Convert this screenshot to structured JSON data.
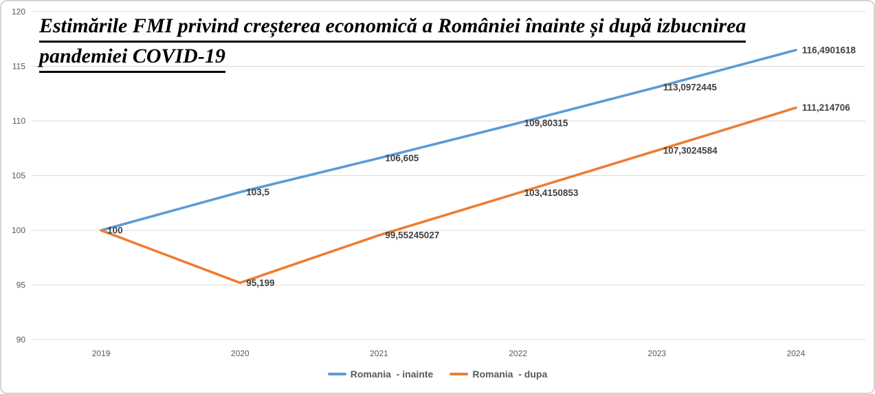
{
  "title": {
    "line1": "Estimările FMI privind creșterea economică a României înainte și după izbucnirea",
    "line2": "pandemiei COVID-19"
  },
  "chart_data": {
    "type": "line",
    "title": "Estimările FMI privind creșterea economică a României înainte și după izbucnirea pandemiei COVID-19",
    "categories": [
      "2019",
      "2020",
      "2021",
      "2022",
      "2023",
      "2024"
    ],
    "series": [
      {
        "name": "Romania  - inainte",
        "color": "#5B9BD5",
        "values": [
          100,
          103.5,
          106.605,
          109.80315,
          113.0972445,
          116.4901618
        ],
        "labels": [
          "100",
          "103,5",
          "106,605",
          "109,80315",
          "113,0972445",
          "116,4901618"
        ]
      },
      {
        "name": "Romania  - dupa",
        "color": "#ED7D31",
        "values": [
          100,
          95.199,
          99.55245027,
          103.4150853,
          107.3024584,
          111.214706
        ],
        "labels": [
          null,
          "95,199",
          "99,55245027",
          "103,4150853",
          "107,3024584",
          "111,214706"
        ]
      }
    ],
    "y_axis": {
      "min": 90,
      "max": 120,
      "step": 5,
      "ticks": [
        120,
        115,
        110,
        105,
        100,
        95,
        90
      ]
    },
    "x_axis": {
      "labels": [
        "2019",
        "2020",
        "2021",
        "2022",
        "2023",
        "2024"
      ]
    },
    "grid": true,
    "legend_position": "bottom",
    "styles": {
      "background": "#FFFFFF",
      "frame_border_color": "#D4D4D4",
      "grid_color": "#D9D9D9",
      "axis_label_color": "#595959",
      "data_label_color": "#404040",
      "legend_text_color": "#595959",
      "title_color": "#000000",
      "series_blue": "#5B9BD5",
      "series_orange": "#ED7D31"
    }
  }
}
